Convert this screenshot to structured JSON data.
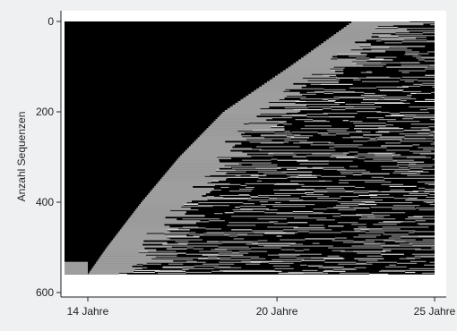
{
  "chart_data": {
    "type": "heatmap",
    "title": "",
    "xlabel": "",
    "ylabel": "Anzahl Sequenzen",
    "x_ticks": [
      "14 Jahre",
      "20 Jahre",
      "25 Jahre"
    ],
    "x_tick_values": [
      14,
      20,
      25
    ],
    "y_ticks": [
      "0",
      "200",
      "400",
      "600"
    ],
    "y_tick_values": [
      0,
      200,
      400,
      600
    ],
    "xlim": [
      14,
      25
    ],
    "ylim": [
      0,
      600
    ],
    "y_inverted": true,
    "n_sequences": 560,
    "grid": false,
    "legend": "none",
    "states": [
      {
        "id": "black",
        "color": "#000000"
      },
      {
        "id": "gray",
        "color": "#9e9e9e"
      },
      {
        "id": "light",
        "color": "#e6e6e6"
      }
    ],
    "first_gray_age": [
      {
        "seq": 0,
        "age": 22.4
      },
      {
        "seq": 100,
        "age": 20.4
      },
      {
        "seq": 200,
        "age": 18.3
      },
      {
        "seq": 300,
        "age": 16.9
      },
      {
        "seq": 400,
        "age": 15.7
      },
      {
        "seq": 500,
        "age": 14.6
      },
      {
        "seq": 560,
        "age": 14.0
      }
    ]
  }
}
